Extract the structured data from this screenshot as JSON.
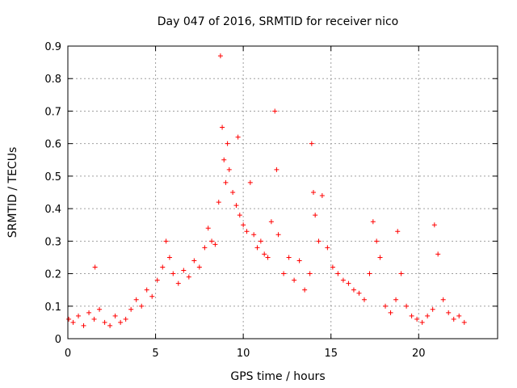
{
  "chart_data": {
    "type": "scatter",
    "title": "Day 047 of 2016, SRMTID for receiver nico",
    "xlabel": "GPS time / hours",
    "ylabel": "SRMTID / TECUs",
    "xlim": [
      0,
      24.5
    ],
    "ylim": [
      0,
      0.9
    ],
    "xticks": [
      0,
      5,
      10,
      15,
      20
    ],
    "xtick_labels": [
      "0",
      "5",
      "10",
      "15",
      "20"
    ],
    "yticks": [
      0,
      0.1,
      0.2,
      0.3,
      0.4,
      0.5,
      0.6,
      0.7,
      0.8,
      0.9
    ],
    "ytick_labels": [
      "0",
      "0.1",
      "0.2",
      "0.3",
      "0.4",
      "0.5",
      "0.6",
      "0.7",
      "0.8",
      "0.9"
    ],
    "grid": true,
    "marker": "plus",
    "series": [
      {
        "name": "SRMTID",
        "color": "#ff0000",
        "x": [
          0.05,
          0.3,
          0.6,
          0.9,
          1.2,
          1.5,
          1.55,
          1.8,
          2.1,
          2.4,
          2.7,
          3.0,
          3.3,
          3.6,
          3.9,
          4.2,
          4.5,
          4.8,
          5.1,
          5.4,
          5.6,
          5.8,
          6.0,
          6.3,
          6.6,
          6.9,
          7.2,
          7.5,
          7.8,
          8.0,
          8.2,
          8.4,
          8.6,
          8.7,
          8.8,
          8.9,
          9.0,
          9.1,
          9.2,
          9.4,
          9.6,
          9.7,
          9.8,
          10.0,
          10.2,
          10.4,
          10.6,
          10.8,
          11.0,
          11.2,
          11.4,
          11.6,
          11.8,
          11.9,
          12.0,
          12.3,
          12.6,
          12.9,
          13.2,
          13.5,
          13.8,
          13.9,
          14.0,
          14.1,
          14.3,
          14.5,
          14.8,
          15.1,
          15.4,
          15.7,
          16.0,
          16.3,
          16.6,
          16.9,
          17.2,
          17.4,
          17.6,
          17.8,
          18.1,
          18.4,
          18.7,
          18.8,
          19.0,
          19.3,
          19.6,
          19.9,
          20.2,
          20.5,
          20.8,
          20.9,
          21.1,
          21.4,
          21.7,
          22.0,
          22.3,
          22.6
        ],
        "y": [
          0.06,
          0.05,
          0.07,
          0.04,
          0.08,
          0.06,
          0.22,
          0.09,
          0.05,
          0.04,
          0.07,
          0.05,
          0.06,
          0.09,
          0.12,
          0.1,
          0.15,
          0.13,
          0.18,
          0.22,
          0.3,
          0.25,
          0.2,
          0.17,
          0.21,
          0.19,
          0.24,
          0.22,
          0.28,
          0.34,
          0.3,
          0.29,
          0.42,
          0.87,
          0.65,
          0.55,
          0.48,
          0.6,
          0.52,
          0.45,
          0.41,
          0.62,
          0.38,
          0.35,
          0.33,
          0.48,
          0.32,
          0.28,
          0.3,
          0.26,
          0.25,
          0.36,
          0.7,
          0.52,
          0.32,
          0.2,
          0.25,
          0.18,
          0.24,
          0.15,
          0.2,
          0.6,
          0.45,
          0.38,
          0.3,
          0.44,
          0.28,
          0.22,
          0.2,
          0.18,
          0.17,
          0.15,
          0.14,
          0.12,
          0.2,
          0.36,
          0.3,
          0.25,
          0.1,
          0.08,
          0.12,
          0.33,
          0.2,
          0.1,
          0.07,
          0.06,
          0.05,
          0.07,
          0.09,
          0.35,
          0.26,
          0.12,
          0.08,
          0.06,
          0.07,
          0.05
        ]
      }
    ]
  }
}
